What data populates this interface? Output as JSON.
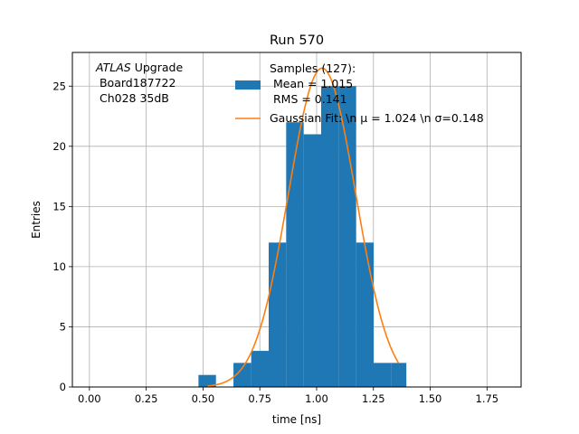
{
  "chart_data": {
    "type": "bar",
    "title": "Run 570",
    "xlabel": "time [ns]",
    "ylabel": "Entries",
    "xlim": [
      -0.075,
      1.9
    ],
    "ylim": [
      0,
      27.8
    ],
    "xticks": [
      0.0,
      0.25,
      0.5,
      0.75,
      1.0,
      1.25,
      1.5,
      1.75
    ],
    "xtick_labels": [
      "0.00",
      "0.25",
      "0.50",
      "0.75",
      "1.00",
      "1.25",
      "1.50",
      "1.75"
    ],
    "yticks": [
      0,
      5,
      10,
      15,
      20,
      25
    ],
    "ytick_labels": [
      "0",
      "5",
      "10",
      "15",
      "20",
      "25"
    ],
    "grid": true,
    "annotation": {
      "italic": "ATLAS",
      "line1_rest": " Upgrade",
      "line2": " Board187722",
      "line3": " Ch028 35dB"
    },
    "legend": {
      "placement": "upper-center",
      "histogram_lines": [
        "Samples (127):",
        " Mean = 1.015",
        " RMS = 0.141"
      ],
      "fit_label": "Gaussian Fit: \\n μ = 1.024 \\n σ=0.148"
    },
    "histogram": {
      "color": "#1f77b4",
      "bins": [
        {
          "x0": 0.48,
          "x1": 0.557,
          "count": 1
        },
        {
          "x0": 0.557,
          "x1": 0.634,
          "count": 0
        },
        {
          "x0": 0.634,
          "x1": 0.712,
          "count": 2
        },
        {
          "x0": 0.712,
          "x1": 0.789,
          "count": 3
        },
        {
          "x0": 0.789,
          "x1": 0.866,
          "count": 12
        },
        {
          "x0": 0.866,
          "x1": 0.943,
          "count": 22
        },
        {
          "x0": 0.943,
          "x1": 1.02,
          "count": 21
        },
        {
          "x0": 1.02,
          "x1": 1.097,
          "count": 25
        },
        {
          "x0": 1.097,
          "x1": 1.174,
          "count": 25
        },
        {
          "x0": 1.174,
          "x1": 1.251,
          "count": 12
        },
        {
          "x0": 1.251,
          "x1": 1.328,
          "count": 2
        },
        {
          "x0": 1.328,
          "x1": 1.395,
          "count": 2
        }
      ]
    },
    "fit": {
      "color": "#ff7f0e",
      "mu": 1.024,
      "sigma": 0.148,
      "amplitude": 26.5,
      "x_range": [
        0.52,
        1.36
      ]
    }
  }
}
